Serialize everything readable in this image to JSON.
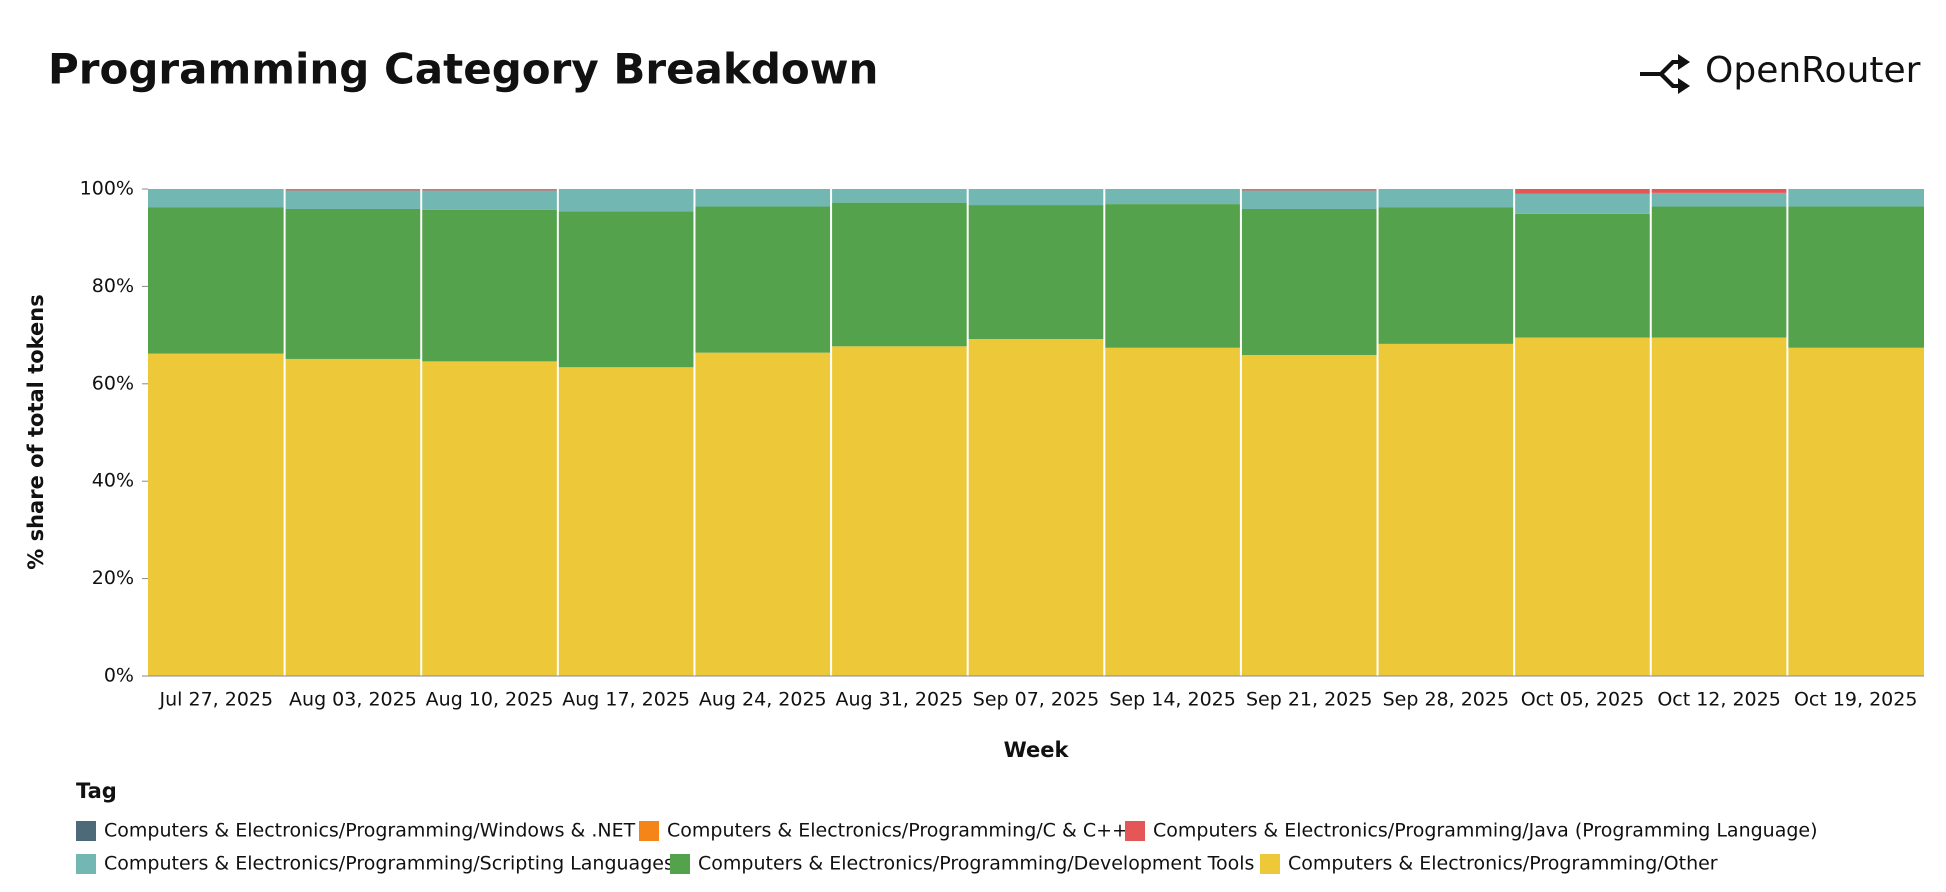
{
  "brand": "OpenRouter",
  "chart_data": {
    "type": "bar",
    "stacked": true,
    "title": "Programming Category Breakdown",
    "x_label": "Week",
    "y_label": "% share of total tokens",
    "legend_title": "Tag",
    "categories": [
      "Jul 27, 2025",
      "Aug 03, 2025",
      "Aug 10, 2025",
      "Aug 17, 2025",
      "Aug 24, 2025",
      "Aug 31, 2025",
      "Sep 07, 2025",
      "Sep 14, 2025",
      "Sep 21, 2025",
      "Sep 28, 2025",
      "Oct 05, 2025",
      "Oct 12, 2025",
      "Oct 19, 2025"
    ],
    "series": [
      {
        "name": "Computers & Electronics/Programming/Other",
        "color": "#edc93a",
        "values": [
          66.2,
          65.1,
          64.6,
          63.4,
          66.4,
          67.7,
          69.2,
          67.4,
          65.9,
          68.2,
          69.5,
          69.5,
          67.4
        ]
      },
      {
        "name": "Computers & Electronics/Programming/Development Tools",
        "color": "#54a24b",
        "values": [
          30.0,
          30.8,
          31.1,
          32.0,
          30.0,
          29.5,
          27.5,
          29.5,
          30.0,
          28.0,
          25.4,
          26.9,
          29.0
        ]
      },
      {
        "name": "Computers & Electronics/Programming/Scripting Languages",
        "color": "#72b7b2",
        "values": [
          3.8,
          3.8,
          4.0,
          4.6,
          3.6,
          2.8,
          3.3,
          3.1,
          3.8,
          3.8,
          4.1,
          2.8,
          3.6
        ]
      },
      {
        "name": "Computers & Electronics/Programming/Java (Programming Language)",
        "color": "#e45756",
        "values": [
          0,
          0.2,
          0.2,
          0,
          0,
          0,
          0,
          0,
          0.2,
          0,
          1.0,
          0.8,
          0
        ]
      },
      {
        "name": "Computers & Electronics/Programming/C & C++",
        "color": "#f58518",
        "values": [
          0,
          0.1,
          0.1,
          0,
          0,
          0,
          0,
          0,
          0.1,
          0,
          0,
          0,
          0
        ]
      },
      {
        "name": "Computers & Electronics/Programming/Windows & .NET",
        "color": "#4c6a78",
        "values": [
          0,
          0,
          0,
          0,
          0,
          0,
          0,
          0,
          0,
          0,
          0,
          0,
          0
        ]
      }
    ],
    "legend_order": [
      5,
      4,
      3,
      2,
      1,
      0
    ],
    "ylim": [
      0,
      100
    ],
    "yticks": [
      {
        "value": 0,
        "label": "0%"
      },
      {
        "value": 20,
        "label": "20%"
      },
      {
        "value": 40,
        "label": "40%"
      },
      {
        "value": 60,
        "label": "60%"
      },
      {
        "value": 80,
        "label": "80%"
      },
      {
        "value": 100,
        "label": "100%"
      }
    ]
  }
}
